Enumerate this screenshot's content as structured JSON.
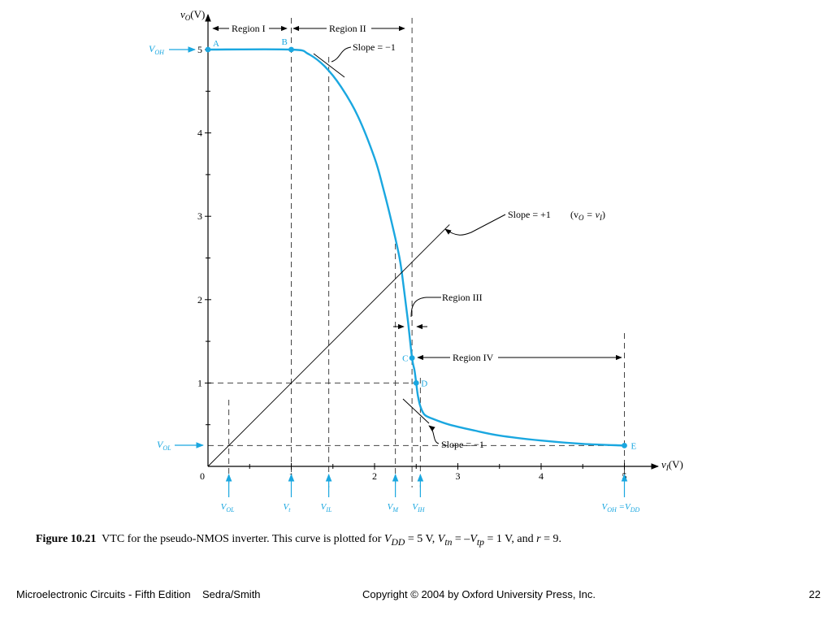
{
  "chart_data": {
    "type": "line",
    "ylabel_var": "v",
    "ylabel_sub": "O",
    "ylabel_unit": "(V)",
    "xlabel_var": "v",
    "xlabel_sub": "I",
    "xlabel_unit": "(V)",
    "xlim": [
      0,
      5.3
    ],
    "ylim": [
      0,
      5.4
    ],
    "x_tick_labels": [
      "0",
      "1",
      "2",
      "3",
      "4",
      "5"
    ],
    "x_tick_values": [
      0,
      1,
      2,
      3,
      4,
      5
    ],
    "y_tick_labels": [
      "1",
      "2",
      "3",
      "4",
      "5"
    ],
    "y_tick_values": [
      1,
      2,
      3,
      4,
      5
    ],
    "series": [
      {
        "color": "#1aa7e0",
        "x": [
          0,
          1.0,
          1.2,
          1.4,
          1.6,
          1.8,
          2.0,
          2.1,
          2.2,
          2.3,
          2.35,
          2.4,
          2.45,
          2.48,
          2.5,
          2.52,
          2.55,
          2.6,
          2.7,
          2.9,
          3.2,
          3.5,
          4.0,
          4.5,
          5.0
        ],
        "y": [
          5.0,
          5.0,
          4.95,
          4.8,
          4.55,
          4.2,
          3.7,
          3.35,
          2.95,
          2.5,
          2.15,
          1.75,
          1.3,
          1.15,
          1.0,
          0.85,
          0.72,
          0.62,
          0.57,
          0.5,
          0.43,
          0.37,
          0.31,
          0.27,
          0.25
        ]
      },
      {
        "color": "#000000",
        "x": [
          0,
          2.9
        ],
        "y": [
          0,
          2.9
        ]
      }
    ],
    "points": [
      {
        "label": "A",
        "x": 0,
        "y": 5.0
      },
      {
        "label": "B",
        "x": 1.0,
        "y": 5.0
      },
      {
        "label": "C",
        "x": 2.45,
        "y": 1.3
      },
      {
        "label": "D",
        "x": 2.5,
        "y": 1.0
      },
      {
        "label": "E",
        "x": 5.0,
        "y": 0.25
      }
    ],
    "regions": [
      "Region I",
      "Region II",
      "Region III",
      "Region IV"
    ],
    "annotations": {
      "slope_top": "Slope = −1",
      "slope_bottom": "Slope = −1",
      "slope_unity": "Slope = +1",
      "slope_unity_note": "(v",
      "slope_unity_note_sub1": "O",
      "slope_unity_note_eq": " = v",
      "slope_unity_note_sub2": "I",
      "slope_unity_note_close": ")"
    },
    "markers": {
      "VOH": {
        "main": "V",
        "sub": "OH",
        "y": 5.0
      },
      "VOL": {
        "main": "V",
        "sub": "OL",
        "y": 0.25
      }
    },
    "bottom_labels": [
      {
        "main": "V",
        "sub": "OL",
        "x": 0.25
      },
      {
        "main": "V",
        "sub": "t",
        "x": 1.0
      },
      {
        "main": "V",
        "sub": "IL",
        "x": 1.45
      },
      {
        "main": "V",
        "sub": "M",
        "x": 2.25
      },
      {
        "main": "V",
        "sub": "IH",
        "x": 2.55
      },
      {
        "main": "V",
        "sub": "OH",
        "main2": " =V",
        "sub2": "DD",
        "x": 5.0
      }
    ],
    "guides": {
      "v_lines": [
        1.0,
        1.45,
        2.25,
        2.45,
        2.55,
        5.0
      ],
      "h_lines": [
        1.0,
        0.25
      ]
    }
  },
  "caption": {
    "figure_label": "Figure 10.21",
    "text_1": "VTC for the pseudo-NMOS inverter. This curve is plotted for ",
    "vdd_main": "V",
    "vdd_sub": "DD",
    "text_2": " = 5 V, ",
    "vtn_main": "V",
    "vtn_sub": "tn",
    "text_3": " = –",
    "vtp_main": "V",
    "vtp_sub": "tp",
    "text_4": " = 1 V, and ",
    "r_var": "r",
    "text_5": " = 9."
  },
  "footer": {
    "book": "Microelectronic Circuits - Fifth Edition    Sedra/Smith",
    "copyright": "Copyright © 2004 by Oxford University Press, Inc.",
    "page": "22"
  },
  "colors": {
    "accent": "#1aa7e0",
    "ink": "#000000",
    "guide": "#444444"
  }
}
